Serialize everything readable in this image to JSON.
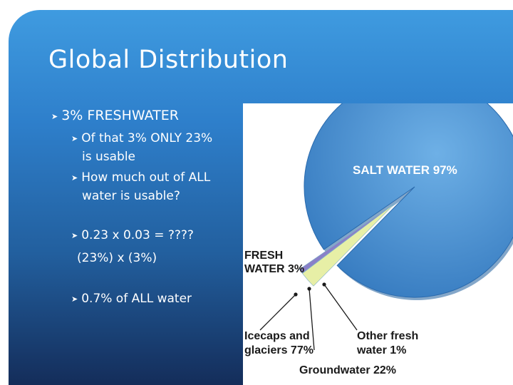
{
  "slide": {
    "title": "Global Distribution",
    "bullets": {
      "b1": "3% FRESHWATER",
      "b2_line1": "Of that 3% ONLY 23%",
      "b2_line2": "is usable",
      "b3_line1": "How much out of ALL",
      "b3_line2": "water is usable?",
      "b4": "0.23 x 0.03 = ????",
      "b4_sub": "(23%) x (3%)",
      "b5": "0.7% of ALL water"
    },
    "bullet_icon": "arrow-bullet-icon"
  },
  "chart_data": {
    "type": "pie",
    "slices": [
      {
        "label": "SALT WATER",
        "value": 97
      },
      {
        "label": "FRESH WATER",
        "value": 3
      }
    ],
    "breakdown": {
      "of": "FRESH WATER",
      "slices": [
        {
          "label": "Icecaps and glaciers",
          "value": 77
        },
        {
          "label": "Groundwater",
          "value": 22
        },
        {
          "label": "Other fresh water",
          "value": 1
        }
      ]
    },
    "labels": {
      "salt": "SALT WATER 97%",
      "fresh_l1": "FRESH",
      "fresh_l2": "WATER 3%",
      "ice_l1": "Icecaps and",
      "ice_l2": "glaciers 77%",
      "ground": "Groundwater 22%",
      "other_l1": "Other fresh",
      "other_l2": "water 1%"
    },
    "colors": {
      "salt": "#4a90d0",
      "ice": "#e7efa6",
      "ground": "#8a80c8",
      "other": "#63c7d0"
    }
  }
}
